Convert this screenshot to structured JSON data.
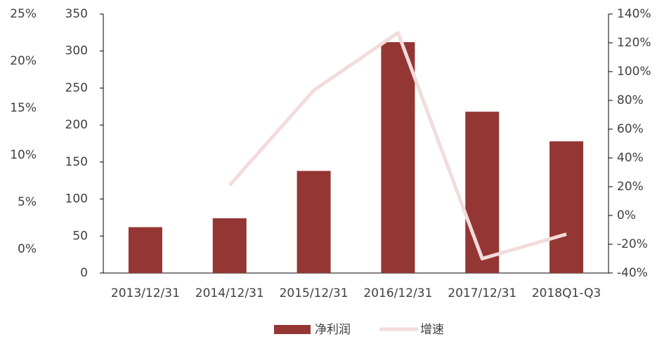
{
  "chart_data": {
    "type": "bar",
    "categories": [
      "2013/12/31",
      "2014/12/31",
      "2015/12/31",
      "2016/12/31",
      "2017/12/31",
      "2018Q1-Q3"
    ],
    "series": [
      {
        "name": "净利润",
        "type": "bar",
        "color": "#943634",
        "values": [
          62,
          74,
          138,
          312,
          218,
          178
        ]
      },
      {
        "name": "增速",
        "type": "line",
        "axis": "y2",
        "color": "#f2dcdb",
        "values": [
          null,
          21,
          87,
          127,
          -30,
          -13
        ]
      }
    ],
    "ylim": [
      0,
      350
    ],
    "yticks": [
      0,
      50,
      100,
      150,
      200,
      250,
      300,
      350
    ],
    "y2lim": [
      -40,
      140
    ],
    "y2ticks": [
      {
        "value": -40,
        "label": "-40%"
      },
      {
        "value": -20,
        "label": "-20%"
      },
      {
        "value": 0,
        "label": "0%"
      },
      {
        "value": 20,
        "label": "20%"
      },
      {
        "value": 40,
        "label": "40%"
      },
      {
        "value": 60,
        "label": "60%"
      },
      {
        "value": 80,
        "label": "80%"
      },
      {
        "value": 100,
        "label": "100%"
      },
      {
        "value": 120,
        "label": "120%"
      },
      {
        "value": 140,
        "label": "140%"
      }
    ],
    "y3lim": [
      -2.54,
      25
    ],
    "y3ticks": [
      {
        "value": 0,
        "label": "0%"
      },
      {
        "value": 5,
        "label": "5%"
      },
      {
        "value": 10,
        "label": "10%"
      },
      {
        "value": 15,
        "label": "15%"
      },
      {
        "value": 20,
        "label": "20%"
      },
      {
        "value": 25,
        "label": "25%"
      }
    ],
    "legend": "bottom"
  }
}
